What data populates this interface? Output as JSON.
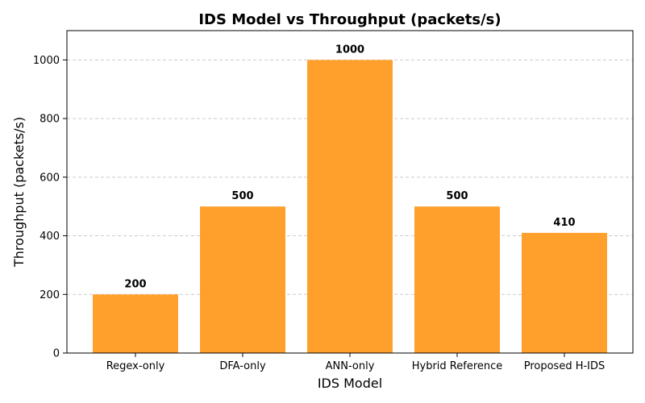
{
  "chart_data": {
    "type": "bar",
    "title": "IDS Model vs Throughput (packets/s)",
    "xlabel": "IDS Model",
    "ylabel": "Throughput (packets/s)",
    "categories": [
      "Regex-only",
      "DFA-only",
      "ANN-only",
      "Hybrid Reference",
      "Proposed H-IDS"
    ],
    "values": [
      200,
      500,
      1000,
      500,
      410
    ],
    "data_labels": [
      "200",
      "500",
      "1000",
      "500",
      "410"
    ],
    "ylim": [
      0,
      1100
    ],
    "yticks": [
      0,
      200,
      400,
      600,
      800,
      1000
    ],
    "ytick_labels": [
      "0",
      "200",
      "400",
      "600",
      "800",
      "1000"
    ],
    "grid": "y-dashed",
    "bar_color": "#ffa02d"
  }
}
